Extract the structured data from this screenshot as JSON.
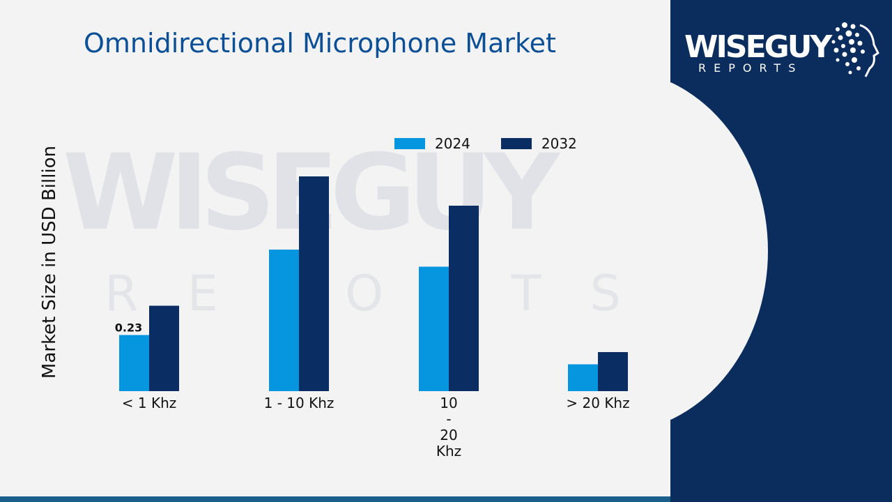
{
  "header": {
    "title": "Omnidirectional Microphone Market"
  },
  "logo": {
    "main": "WISEGUY",
    "sub": "REPORTS"
  },
  "watermark": {
    "main": "WISEGUY",
    "sub": "REPORTS"
  },
  "colors": {
    "series_2024": "#0696e0",
    "series_2032": "#0a2d63",
    "title": "#0b4f96",
    "panel": "#0a2d5e"
  },
  "chart_data": {
    "type": "bar",
    "title": "Omnidirectional Microphone Market",
    "ylabel": "Market Size in USD Billion",
    "xlabel": "",
    "categories": [
      "< 1 Khz",
      "1 - 10 Khz",
      "10 - 20 Khz",
      "> 20 Khz"
    ],
    "category_lines": [
      [
        "< 1 Khz"
      ],
      [
        "1 - 10 Khz"
      ],
      [
        "10",
        "-",
        "20",
        "Khz"
      ],
      [
        "> 20 Khz"
      ]
    ],
    "series": [
      {
        "name": "2024",
        "values": [
          0.23,
          0.58,
          0.51,
          0.11
        ],
        "color": "#0696e0"
      },
      {
        "name": "2032",
        "values": [
          0.35,
          0.88,
          0.76,
          0.16
        ],
        "color": "#0a2d63"
      }
    ],
    "data_labels": [
      {
        "series": 0,
        "index": 0,
        "text": "0.23"
      }
    ],
    "ylim": [
      0,
      1.0
    ],
    "grid": false,
    "legend": "top-center"
  }
}
